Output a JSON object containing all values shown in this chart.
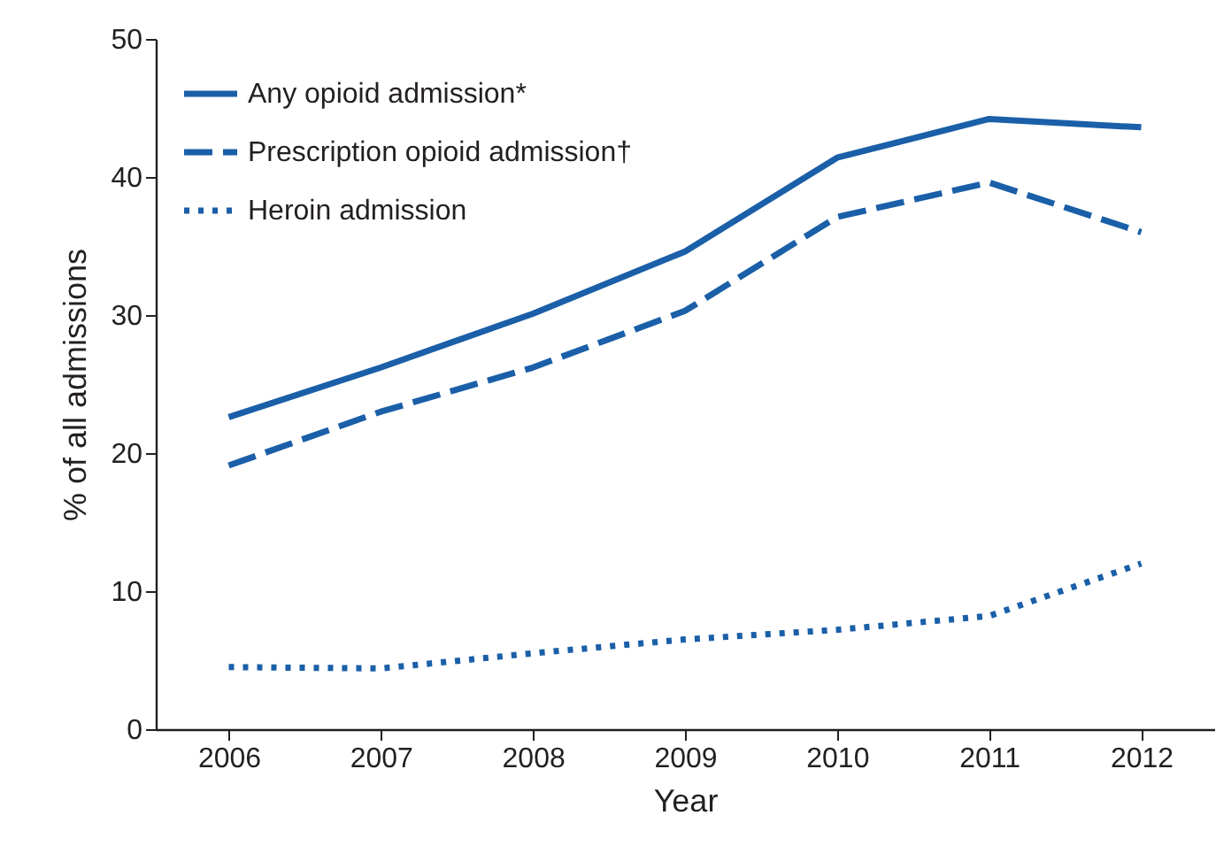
{
  "chart_data": {
    "type": "line",
    "xlabel": "Year",
    "ylabel": "% of all admissions",
    "categories": [
      "2006",
      "2007",
      "2008",
      "2009",
      "2010",
      "2011",
      "2012"
    ],
    "series": [
      {
        "name": "Any opioid admission*",
        "color": "#1a5fa8",
        "line_style": "solid",
        "values": [
          22.6,
          26.2,
          30.1,
          34.6,
          41.4,
          44.2,
          43.6
        ]
      },
      {
        "name": "Prescription opioid admission†",
        "color": "#1a5fa8",
        "line_style": "dashed",
        "values": [
          19.1,
          23.0,
          26.2,
          30.3,
          37.1,
          39.6,
          36.0
        ]
      },
      {
        "name": "Heroin admission",
        "color": "#1a5fa8",
        "line_style": "dotted",
        "values": [
          4.5,
          4.4,
          5.5,
          6.5,
          7.2,
          8.2,
          12.0
        ]
      }
    ],
    "ylim": [
      0,
      50
    ],
    "yticks": [
      0,
      10,
      20,
      30,
      40,
      50
    ],
    "grid": false,
    "legend": "top left",
    "marker": "none"
  }
}
